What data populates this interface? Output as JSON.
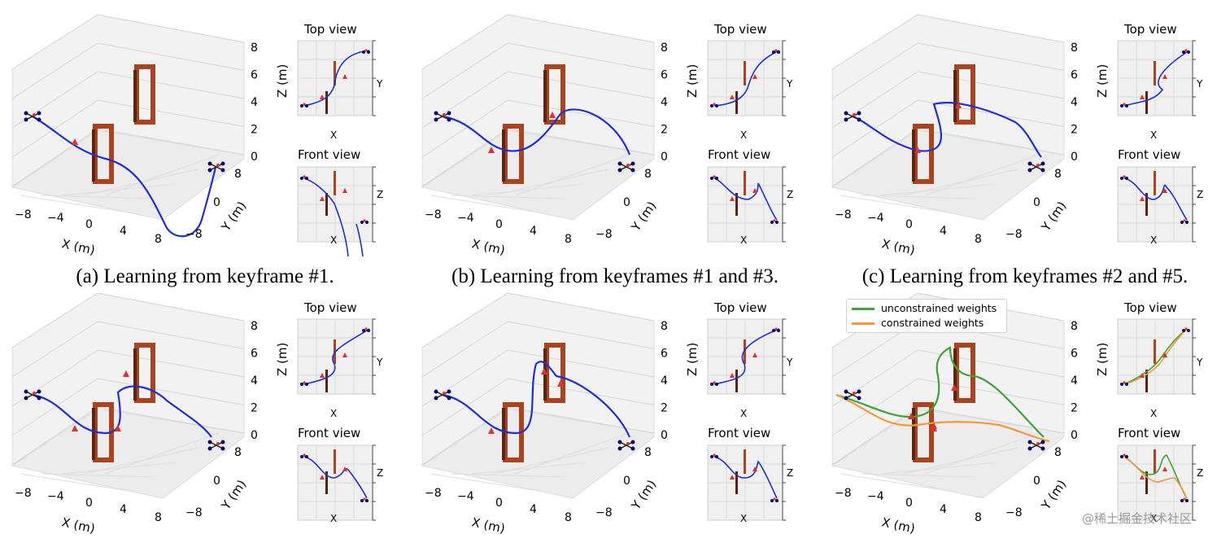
{
  "captions": [
    "(a) Learning from keyframe #1.",
    "(b) Learning from keyframes #1 and #3.",
    "(c) Learning from keyframes #2 and #5."
  ],
  "axes3d": {
    "x_label": "X (m)",
    "y_label": "Y (m)",
    "z_label": "Z (m)",
    "x_ticks": [
      "−8",
      "−4",
      "0",
      "4",
      "8"
    ],
    "y_ticks": [
      "8",
      "0",
      "−8"
    ],
    "z_ticks": [
      "8",
      "6",
      "4",
      "2",
      "0"
    ]
  },
  "views": {
    "top_title": "Top view",
    "front_title": "Front view",
    "top_x": "X",
    "top_y": "Y",
    "front_x": "X",
    "front_z": "Z"
  },
  "legend": {
    "unconstrained": "unconstrained weights",
    "constrained": "constrained weights"
  },
  "colors": {
    "trajectory": "#1f2fd6",
    "unconstrained": "#3fa33a",
    "constrained": "#f39a3a",
    "gate": "#a9441f",
    "keyframe_marker": "#e2312a",
    "drone": "#0a0a6a"
  },
  "watermark": "@稀土掘金技术社区"
}
